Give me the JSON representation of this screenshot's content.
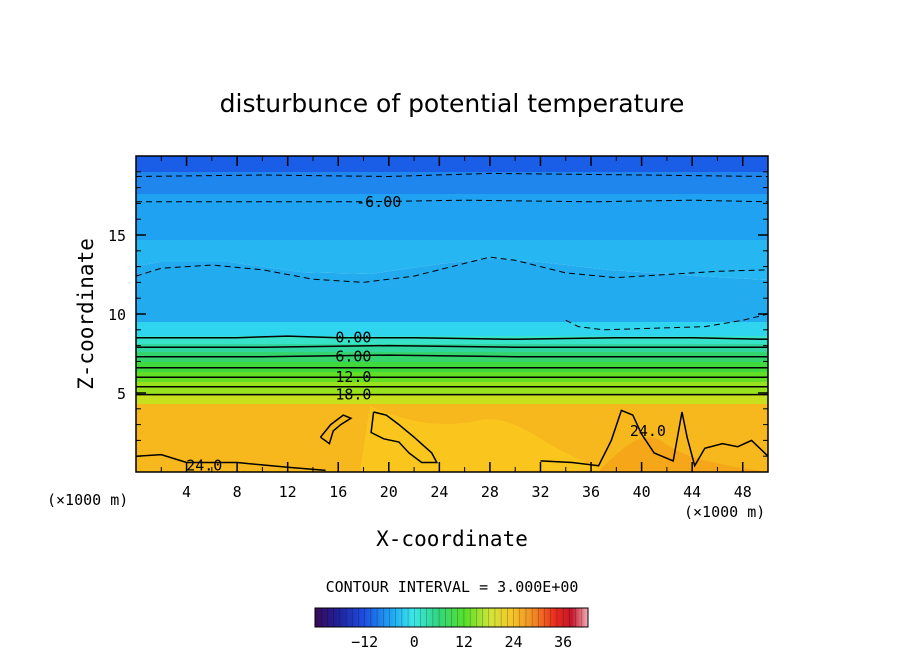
{
  "chart_data": {
    "type": "contour",
    "title": "disturbunce of potential temperature",
    "xlabel": "X-coordinate",
    "ylabel": "Z-coordinate",
    "x_unit": "(×1000 m)",
    "z_unit": "(×1000 m)",
    "xlim": [
      0,
      50
    ],
    "zlim": [
      0,
      20
    ],
    "x_ticks": [
      4,
      8,
      12,
      16,
      20,
      24,
      28,
      32,
      36,
      40,
      44,
      48
    ],
    "z_ticks": [
      5,
      10,
      15
    ],
    "contour_interval_text": "CONTOUR INTERVAL = 3.000E+00",
    "colorbar": {
      "min": -24,
      "max": 42,
      "ticks": [
        -12,
        0,
        12,
        24,
        36
      ]
    },
    "contour_labels": [
      {
        "text": "-6.00",
        "x": 19.2,
        "z": 17.1
      },
      {
        "text": "0.00",
        "x": 17.2,
        "z": 8.5
      },
      {
        "text": "6.00",
        "x": 17.2,
        "z": 7.3
      },
      {
        "text": "12.0",
        "x": 17.2,
        "z": 6.0
      },
      {
        "text": "18.0",
        "x": 17.2,
        "z": 4.9
      },
      {
        "text": "24.0",
        "x": 5.4,
        "z": 0.4
      },
      {
        "text": "24.0",
        "x": 40.5,
        "z": 2.6
      }
    ],
    "isolines": [
      {
        "value": -9,
        "style": "dashed",
        "points": [
          [
            0,
            18.7
          ],
          [
            10,
            18.8
          ],
          [
            20,
            18.7
          ],
          [
            28,
            18.9
          ],
          [
            40,
            18.8
          ],
          [
            50,
            18.7
          ]
        ]
      },
      {
        "value": -6,
        "style": "dashed",
        "points": [
          [
            0,
            17.1
          ],
          [
            10,
            17.1
          ],
          [
            18,
            17.1
          ],
          [
            26,
            17.2
          ],
          [
            36,
            17.1
          ],
          [
            44,
            17.2
          ],
          [
            50,
            17.1
          ]
        ]
      },
      {
        "value": -3,
        "style": "dashed",
        "points": [
          [
            0,
            12.4
          ],
          [
            2,
            12.9
          ],
          [
            6,
            13.1
          ],
          [
            10,
            12.8
          ],
          [
            14,
            12.2
          ],
          [
            18,
            12.0
          ],
          [
            22,
            12.4
          ],
          [
            26,
            13.2
          ],
          [
            28,
            13.6
          ],
          [
            30,
            13.4
          ],
          [
            34,
            12.6
          ],
          [
            38,
            12.3
          ],
          [
            42,
            12.5
          ],
          [
            46,
            12.7
          ],
          [
            50,
            12.8
          ]
        ]
      },
      {
        "value": -3,
        "style": "dashed",
        "points": [
          [
            34,
            9.6
          ],
          [
            35,
            9.2
          ],
          [
            37,
            9.0
          ],
          [
            41,
            9.1
          ],
          [
            45,
            9.2
          ],
          [
            48,
            9.6
          ],
          [
            50,
            10.0
          ]
        ]
      },
      {
        "value": 0,
        "style": "solid",
        "points": [
          [
            0,
            8.5
          ],
          [
            8,
            8.5
          ],
          [
            12,
            8.6
          ],
          [
            16,
            8.5
          ],
          [
            22,
            8.5
          ],
          [
            30,
            8.4
          ],
          [
            38,
            8.5
          ],
          [
            44,
            8.5
          ],
          [
            50,
            8.4
          ]
        ]
      },
      {
        "value": 3,
        "style": "solid",
        "points": [
          [
            0,
            7.9
          ],
          [
            10,
            7.9
          ],
          [
            20,
            8.0
          ],
          [
            30,
            7.9
          ],
          [
            40,
            7.9
          ],
          [
            50,
            7.9
          ]
        ]
      },
      {
        "value": 6,
        "style": "solid",
        "points": [
          [
            0,
            7.3
          ],
          [
            10,
            7.3
          ],
          [
            20,
            7.4
          ],
          [
            30,
            7.3
          ],
          [
            40,
            7.3
          ],
          [
            50,
            7.3
          ]
        ]
      },
      {
        "value": 9,
        "style": "solid",
        "points": [
          [
            0,
            6.6
          ],
          [
            10,
            6.6
          ],
          [
            20,
            6.6
          ],
          [
            30,
            6.6
          ],
          [
            40,
            6.6
          ],
          [
            50,
            6.6
          ]
        ]
      },
      {
        "value": 12,
        "style": "solid",
        "points": [
          [
            0,
            6.0
          ],
          [
            10,
            6.0
          ],
          [
            20,
            6.0
          ],
          [
            30,
            6.0
          ],
          [
            40,
            6.0
          ],
          [
            50,
            6.0
          ]
        ]
      },
      {
        "value": 15,
        "style": "solid",
        "points": [
          [
            0,
            5.4
          ],
          [
            10,
            5.4
          ],
          [
            20,
            5.4
          ],
          [
            30,
            5.4
          ],
          [
            40,
            5.4
          ],
          [
            50,
            5.4
          ]
        ]
      },
      {
        "value": 18,
        "style": "solid",
        "points": [
          [
            0,
            4.9
          ],
          [
            10,
            4.9
          ],
          [
            20,
            4.9
          ],
          [
            30,
            4.9
          ],
          [
            40,
            4.9
          ],
          [
            50,
            4.9
          ]
        ]
      },
      {
        "value": 24,
        "style": "solid",
        "points": [
          [
            0,
            1.0
          ],
          [
            2,
            1.1
          ],
          [
            4,
            0.6
          ],
          [
            8,
            0.6
          ],
          [
            12,
            0.3
          ],
          [
            15,
            0.1
          ]
        ]
      },
      {
        "value": 24,
        "style": "solid",
        "points": [
          [
            14.6,
            2.2
          ],
          [
            15.4,
            3.0
          ],
          [
            16.4,
            3.6
          ],
          [
            17.0,
            3.4
          ],
          [
            16.2,
            3.0
          ],
          [
            15.6,
            2.6
          ],
          [
            15.3,
            1.8
          ],
          [
            14.6,
            2.2
          ]
        ]
      },
      {
        "value": 24,
        "style": "solid",
        "points": [
          [
            18.8,
            3.8
          ],
          [
            19.8,
            3.6
          ],
          [
            20.8,
            3.0
          ],
          [
            22.0,
            2.2
          ],
          [
            23.4,
            1.2
          ],
          [
            23.8,
            0.6
          ],
          [
            22.6,
            0.6
          ],
          [
            21.6,
            1.2
          ],
          [
            20.8,
            1.9
          ],
          [
            19.6,
            2.1
          ],
          [
            18.6,
            2.5
          ],
          [
            18.8,
            3.8
          ]
        ]
      },
      {
        "value": 24,
        "style": "solid",
        "points": [
          [
            32,
            0.7
          ],
          [
            34.5,
            0.6
          ],
          [
            36.6,
            0.4
          ],
          [
            37.6,
            2.0
          ],
          [
            38.4,
            3.9
          ],
          [
            39.3,
            3.6
          ],
          [
            40.0,
            2.4
          ],
          [
            41.0,
            1.2
          ],
          [
            42.5,
            0.7
          ],
          [
            43.2,
            3.8
          ],
          [
            43.6,
            2.2
          ],
          [
            44.2,
            0.4
          ],
          [
            45.0,
            1.5
          ],
          [
            46.4,
            1.8
          ],
          [
            47.6,
            1.6
          ],
          [
            48.7,
            2.0
          ],
          [
            50,
            1.0
          ]
        ]
      }
    ]
  }
}
